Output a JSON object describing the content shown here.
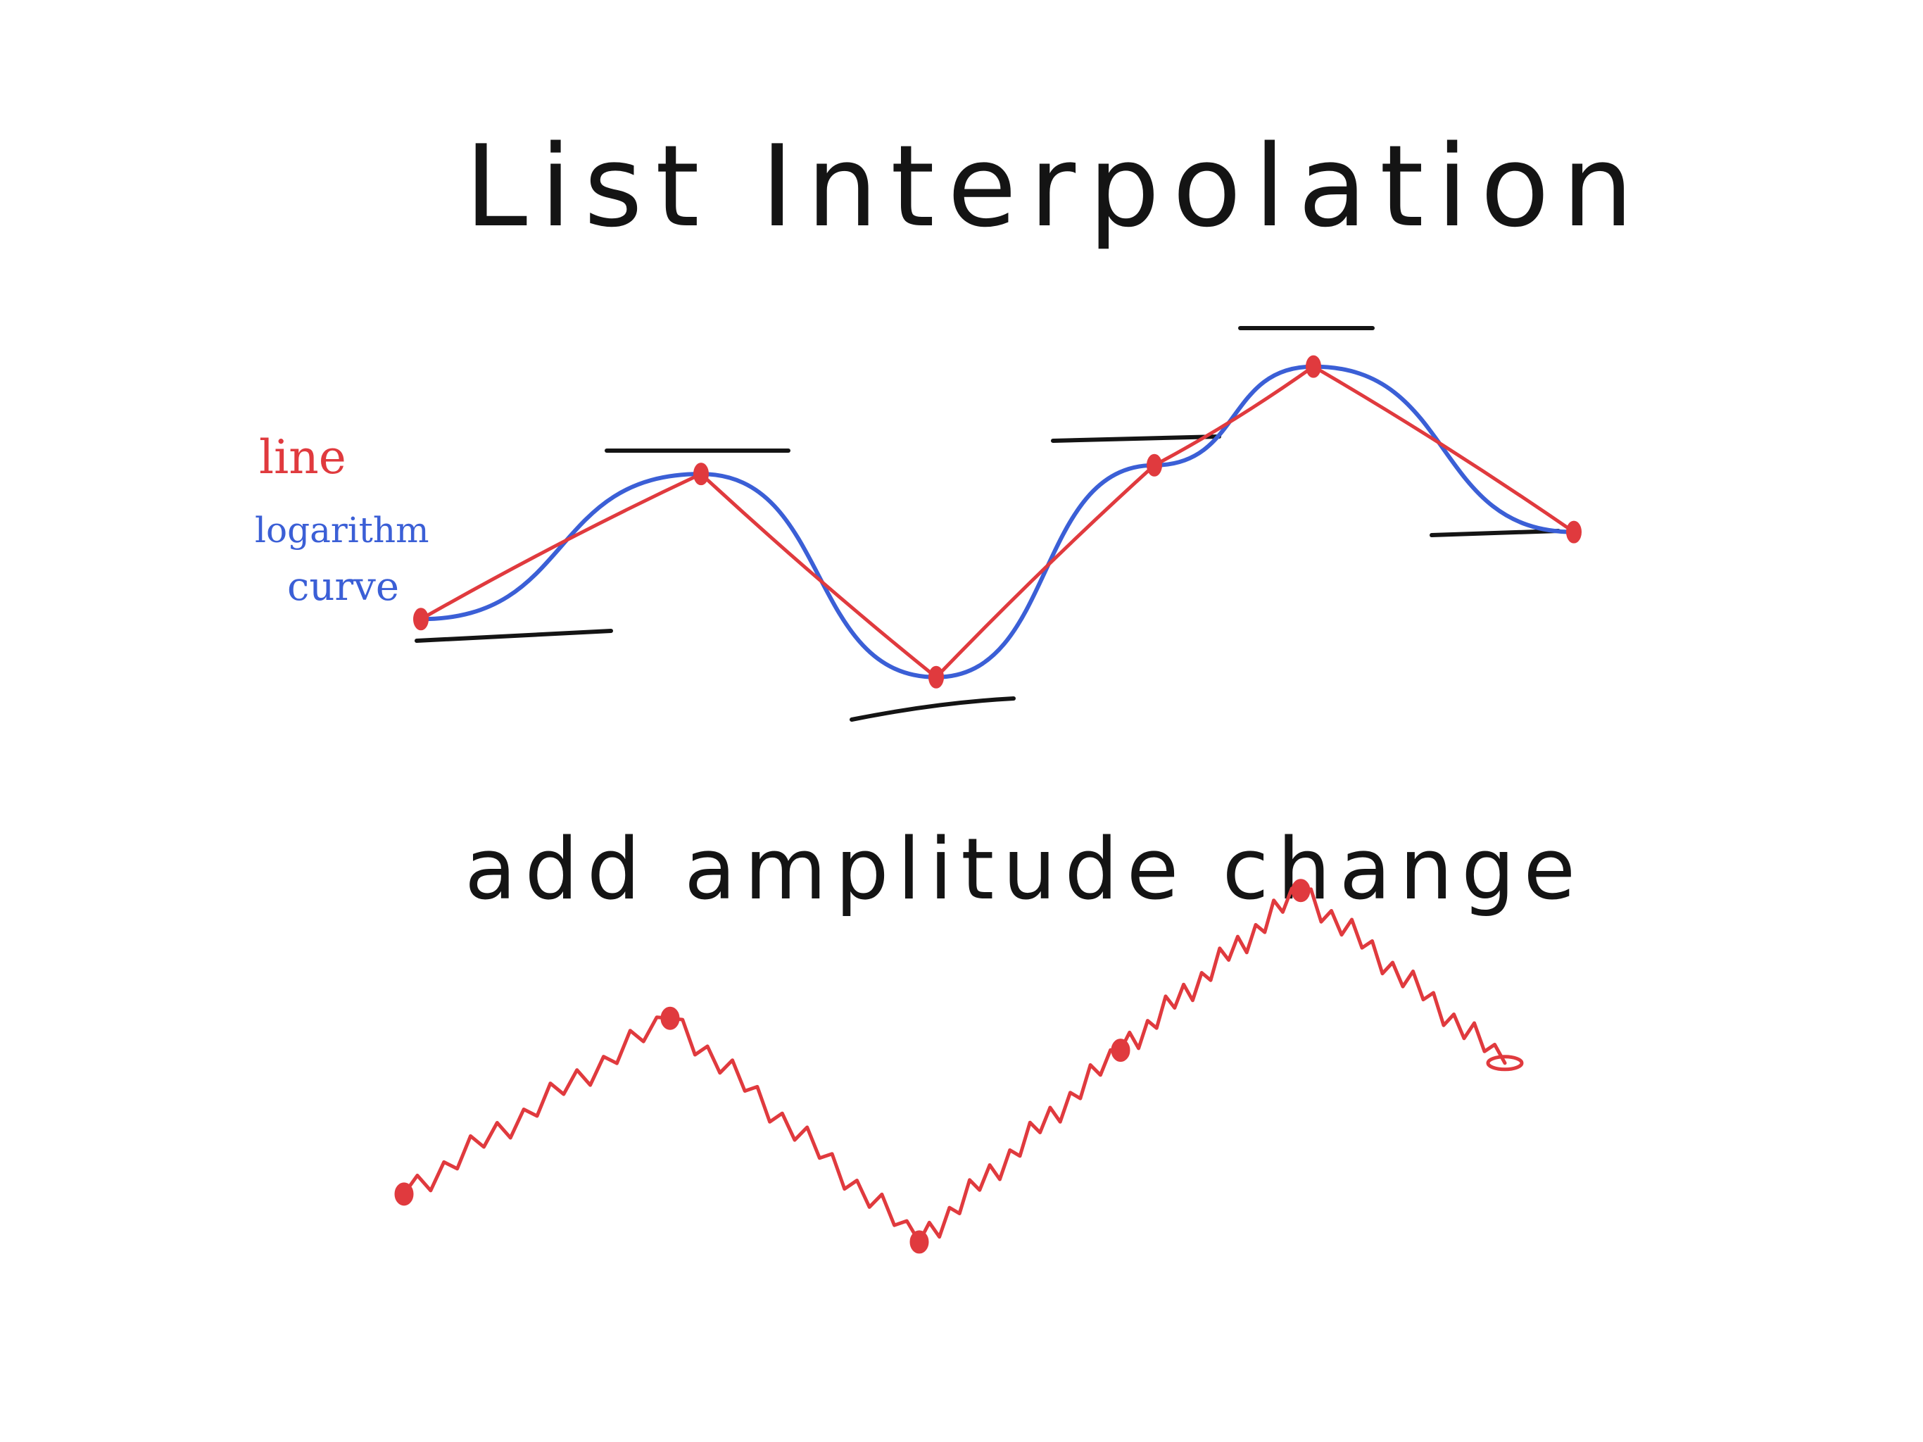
{
  "colors": {
    "ink": "#141414",
    "line": "#e03a3e",
    "curve": "#3b5fd6",
    "background": "#ffffff"
  },
  "title": "List Interpolation",
  "legend": {
    "line_label": "line",
    "curve_label_1": "logarithm",
    "curve_label_2": "curve"
  },
  "subtitle": "add amplitude change",
  "chart_data": [
    {
      "type": "line",
      "title": "",
      "xlabel": "",
      "ylabel": "",
      "x": [
        0,
        1,
        2,
        3,
        4,
        5
      ],
      "series": [
        {
          "name": "line",
          "values": [
            0,
            5,
            -2,
            5.3,
            8.7,
            3
          ]
        },
        {
          "name": "logarithm curve",
          "values": [
            0,
            5,
            -2,
            5.3,
            8.7,
            3
          ]
        }
      ],
      "ylim": [
        -3,
        10
      ],
      "grid": false,
      "legend": "left"
    },
    {
      "type": "line",
      "title": "",
      "xlabel": "",
      "ylabel": "",
      "x": [
        0,
        1,
        2,
        3,
        4,
        5
      ],
      "series": [
        {
          "name": "",
          "values": [
            0,
            5.5,
            -1.5,
            4.5,
            9.5,
            4.1
          ]
        }
      ],
      "ylim": [
        -3,
        10
      ],
      "grid": false
    }
  ]
}
